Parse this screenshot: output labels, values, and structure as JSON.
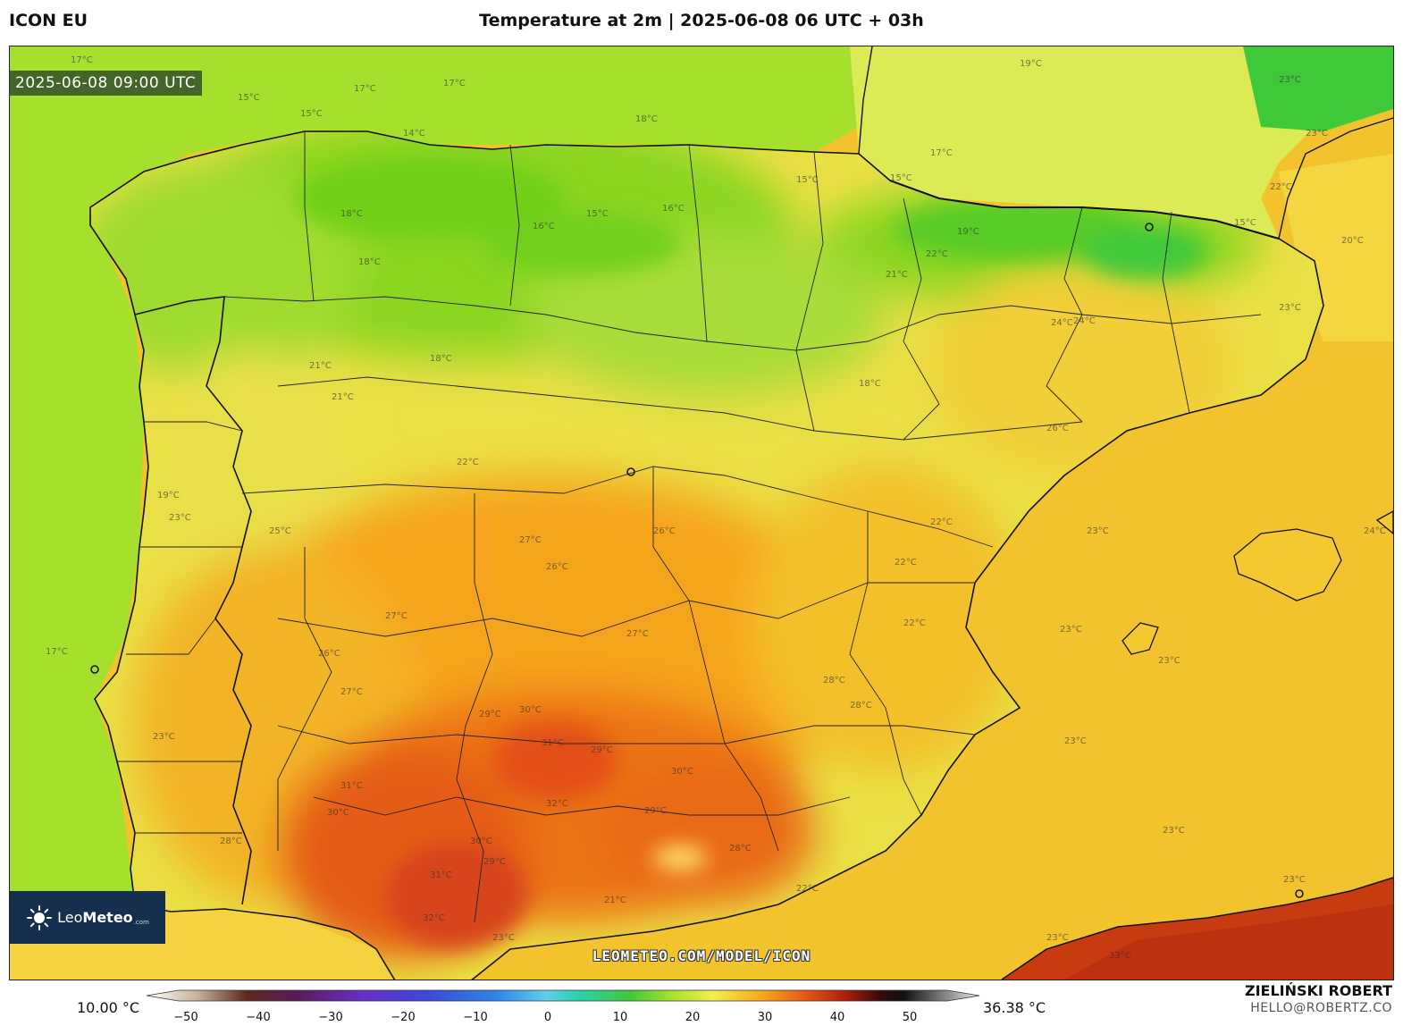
{
  "header": {
    "model": "ICON EU",
    "title": "Temperature at 2m | 2025-06-08 06 UTC + 03h"
  },
  "map": {
    "valid_time": "2025-06-08 09:00 UTC",
    "watermark": "LEOMETEO.COM/MODEL/ICON",
    "logo": {
      "brand_light": "Leo",
      "brand_bold": "Meteo",
      "suffix": ".com",
      "icon": "sun-icon"
    },
    "isotherm_labels": [
      "17°C",
      "17°C",
      "17°C",
      "15°C",
      "15°C",
      "14°C",
      "18°C",
      "18°C",
      "16°C",
      "16°C",
      "15°C",
      "15°C",
      "17°C",
      "15°C",
      "15°C",
      "19°C",
      "18°C",
      "18°C",
      "21°C",
      "22°C",
      "19°C",
      "21°C",
      "24°C",
      "22°C",
      "20°C",
      "23°C",
      "18°C",
      "21°C",
      "22°C",
      "26°C",
      "23°C",
      "19°C",
      "25°C",
      "27°C",
      "26°C",
      "26°C",
      "27°C",
      "22°C",
      "22°C",
      "23°C",
      "26°C",
      "27°C",
      "23°C",
      "27°C",
      "28°C",
      "28°C",
      "29°C",
      "30°C",
      "31°C",
      "29°C",
      "30°C",
      "32°C",
      "30°C",
      "31°C",
      "29°C",
      "28°C",
      "28°C",
      "30°C",
      "31°C",
      "29°C",
      "21°C",
      "22°C",
      "23°C",
      "23°C",
      "23°C",
      "23°C",
      "23°C",
      "23°C",
      "32°C",
      "23°C",
      "33°C",
      "17°C",
      "24°C",
      "23°C",
      "22°C",
      "24°C",
      "23°C"
    ],
    "colors": {
      "ocean_atlantic": "#a6e02c",
      "ocean_biscay": "#a6de2e",
      "mediterranean": "#f2c32d",
      "north_green": "#7fd41a",
      "cold_peaks": "#3fc93a",
      "plateau_yellow": "#e6e64a",
      "warm_orange": "#f5a11c",
      "hot_red": "#e65a17",
      "africa_hot": "#c83a10"
    }
  },
  "legend": {
    "min_label": "10.00 °C",
    "max_label": "36.38 °C",
    "ticks": [
      "−50",
      "−40",
      "−30",
      "−20",
      "−10",
      "0",
      "10",
      "20",
      "30",
      "40",
      "50"
    ]
  },
  "credit": {
    "author": "ZIELIŃSKI ROBERT",
    "email": "HELLO@ROBERTZ.CO"
  }
}
